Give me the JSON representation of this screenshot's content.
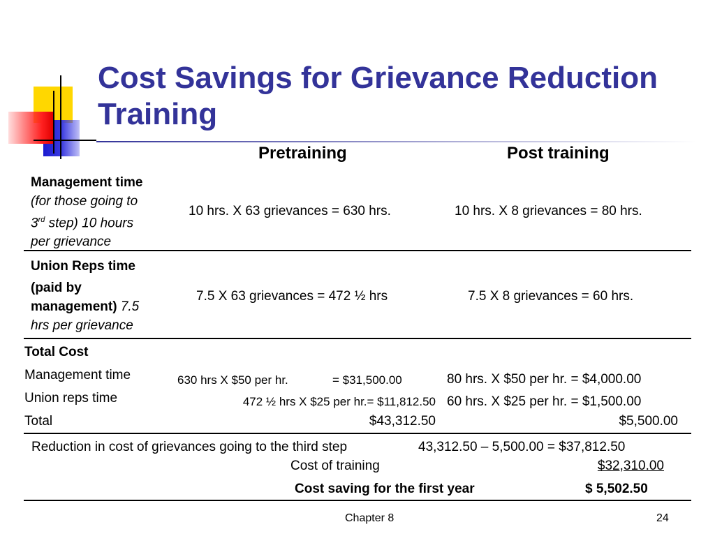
{
  "title": "Cost Savings for Grievance Reduction Training",
  "columns": {
    "pre": "Pretraining",
    "post": "Post training"
  },
  "rows": {
    "mgmt": {
      "label_bold": "Management time",
      "label_italic_1": "(for those going to",
      "ordinal_num": "3",
      "ordinal_sup": "rd",
      "label_italic_2": "step) 10 hours",
      "label_italic_3": "per grievance",
      "pre": "10 hrs. X 63 grievances = 630 hrs.",
      "post": "10 hrs. X 8 grievances = 80 hrs."
    },
    "union": {
      "label_bold_1": "Union Reps time",
      "label_bold_2": "(paid by",
      "label_bold_3": "management)",
      "label_italic_1": "7.5",
      "label_italic_2": "hrs per grievance",
      "pre": "7.5 X 63 grievances = 472 ½ hrs",
      "post": "7.5 X 8 grievances = 60 hrs."
    }
  },
  "total_cost": {
    "heading": "Total Cost",
    "mgmt_label": "Management time",
    "mgmt_pre_calc": "630 hrs X $50 per hr.",
    "mgmt_pre_result": "= $31,500.00",
    "mgmt_post": "80 hrs. X $50 per hr. = $4,000.00",
    "union_label": "Union reps time",
    "union_pre": "472 ½ hrs X $25 per hr.= $11,812.50",
    "union_post": "60 hrs. X $25 per hr. = $1,500.00",
    "total_label": "Total",
    "total_pre": "$43,312.50",
    "total_post": "$5,500.00"
  },
  "summary": {
    "reduction_label": "Reduction in cost of grievances going to the third step",
    "reduction_value": "43,312.50 – 5,500.00 = $37,812.50",
    "training_label": "Cost of training",
    "training_value": "$32,310.00",
    "saving_label": "Cost saving for the first year",
    "saving_value": "$ 5,502.50"
  },
  "footer": {
    "chapter": "Chapter 8",
    "page": "24"
  }
}
